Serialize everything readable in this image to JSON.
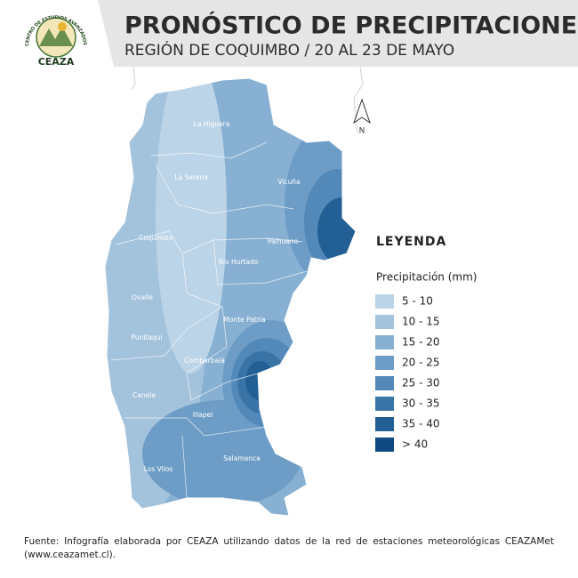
{
  "header": {
    "title": "PRONÓSTICO DE PRECIPITACIONES",
    "subtitle": "REGIÓN DE COQUIMBO / 20 AL 23 DE MAYO",
    "logo": {
      "name": "CEAZA",
      "motto": "CENTRO DE ESTUDIOS AVANZADOS EN ZONAS ÁRIDAS"
    }
  },
  "map": {
    "north": "N",
    "communes": [
      "La Higuera",
      "La Serena",
      "Vicuña",
      "Coquimbo",
      "Paihuano",
      "Río Hurtado",
      "Ovalle",
      "Monte Patria",
      "Punitaqui",
      "Combarbalá",
      "Canela",
      "Illapel",
      "Salamanca",
      "Los Vilos"
    ]
  },
  "legend": {
    "title": "LEYENDA",
    "subtitle": "Precipitación (mm)",
    "items": [
      {
        "label": "5 - 10",
        "color": "#bcd4e7"
      },
      {
        "label": "10 - 15",
        "color": "#a3c3dd"
      },
      {
        "label": "15 - 20",
        "color": "#87b0d2"
      },
      {
        "label": "20 - 25",
        "color": "#6d9dc6"
      },
      {
        "label": "25 - 30",
        "color": "#5289b8"
      },
      {
        "label": "30 - 35",
        "color": "#3a74a7"
      },
      {
        "label": "35 - 40",
        "color": "#215f94"
      },
      {
        "label": "> 40",
        "color": "#0e4a80"
      }
    ]
  },
  "footer": {
    "source": "Fuente: Infografía elaborada por CEAZA utilizando datos de la red de estaciones meteorológicas CEAZAMet (www.ceazamet.cl)."
  }
}
